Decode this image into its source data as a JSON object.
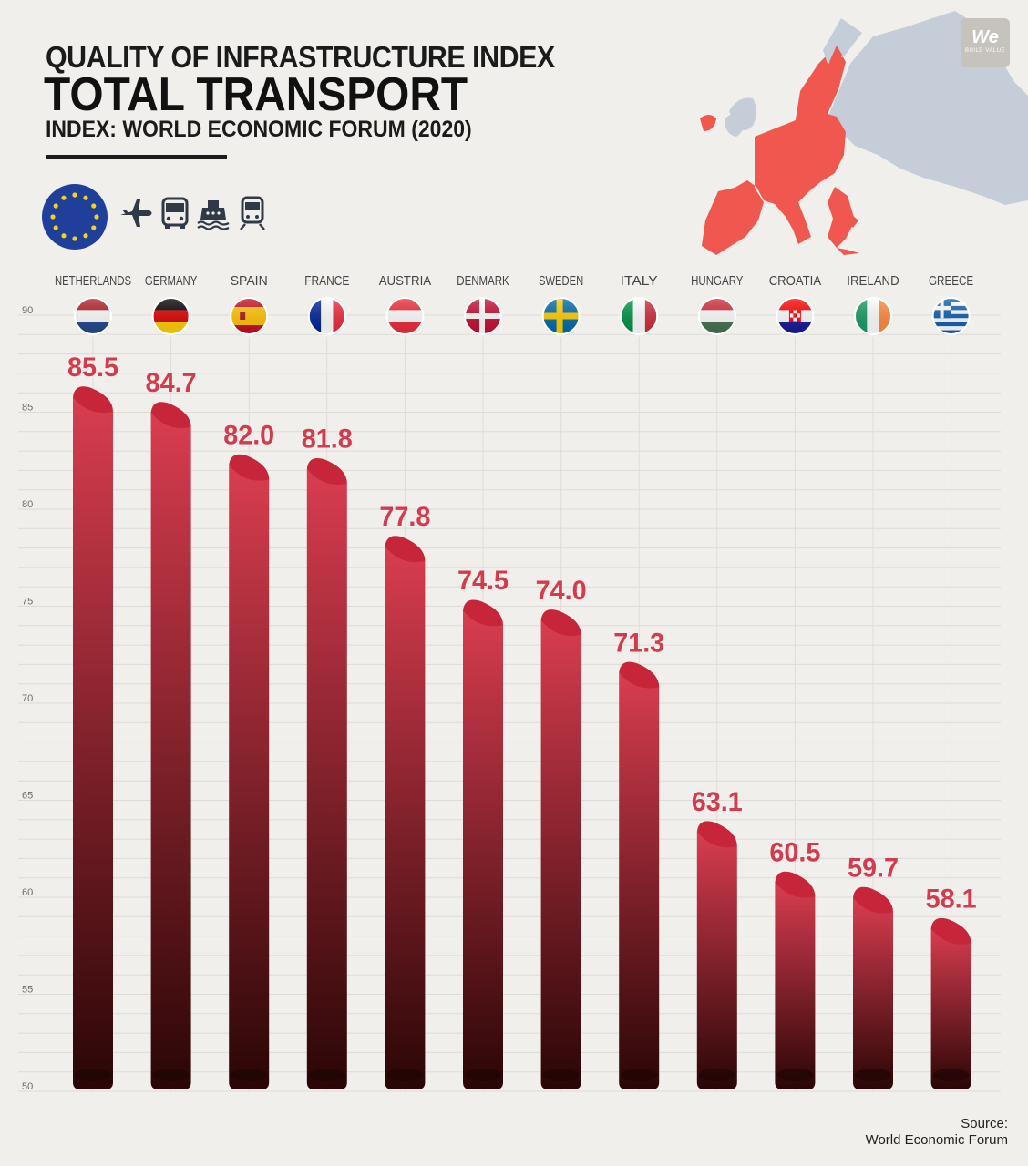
{
  "header": {
    "title_line1": "QUALITY OF INFRASTRUCTURE INDEX",
    "title_line2": "TOTAL TRANSPORT",
    "subtitle": "INDEX: WORLD ECONOMIC FORUM (2020)"
  },
  "logo": {
    "word": "We",
    "tagline": "BUILD VALUE"
  },
  "icons": [
    "eu-flag-icon",
    "airplane-icon",
    "bus-icon",
    "ship-icon",
    "train-icon"
  ],
  "colors": {
    "background": "#f1efeb",
    "bar_top": "#d93d50",
    "bar_bottom": "#2a0606",
    "value_label": "#d43c4e",
    "map_highlight": "#f0574f",
    "map_base": "#c4cdd8",
    "eu_blue": "#1f3f9a",
    "eu_gold": "#f3d21a"
  },
  "chart_data": {
    "type": "bar",
    "title": "QUALITY OF INFRASTRUCTURE INDEX TOTAL TRANSPORT",
    "subtitle": "INDEX: WORLD ECONOMIC FORUM (2020)",
    "categories": [
      "NETHERLANDS",
      "GERMANY",
      "SPAIN",
      "FRANCE",
      "AUSTRIA",
      "DENMARK",
      "SWEDEN",
      "ITALY",
      "HUNGARY",
      "CROATIA",
      "IRELAND",
      "GREECE"
    ],
    "values": [
      85.5,
      84.7,
      82.0,
      81.8,
      77.8,
      74.5,
      74.0,
      71.3,
      63.1,
      60.5,
      59.7,
      58.1
    ],
    "value_labels": [
      "85.5",
      "84.7",
      "82.0",
      "81.8",
      "77.8",
      "74.5",
      "74.0",
      "71.3",
      "63.1",
      "60.5",
      "59.7",
      "58.1"
    ],
    "ylim": [
      50,
      90
    ],
    "yticks": [
      "50",
      "55",
      "60",
      "65",
      "70",
      "75",
      "80",
      "85",
      "90"
    ],
    "xlabel": "",
    "ylabel": "",
    "grid": true,
    "legend": "none"
  },
  "source": {
    "label": "Source:",
    "name": "World Economic Forum"
  }
}
